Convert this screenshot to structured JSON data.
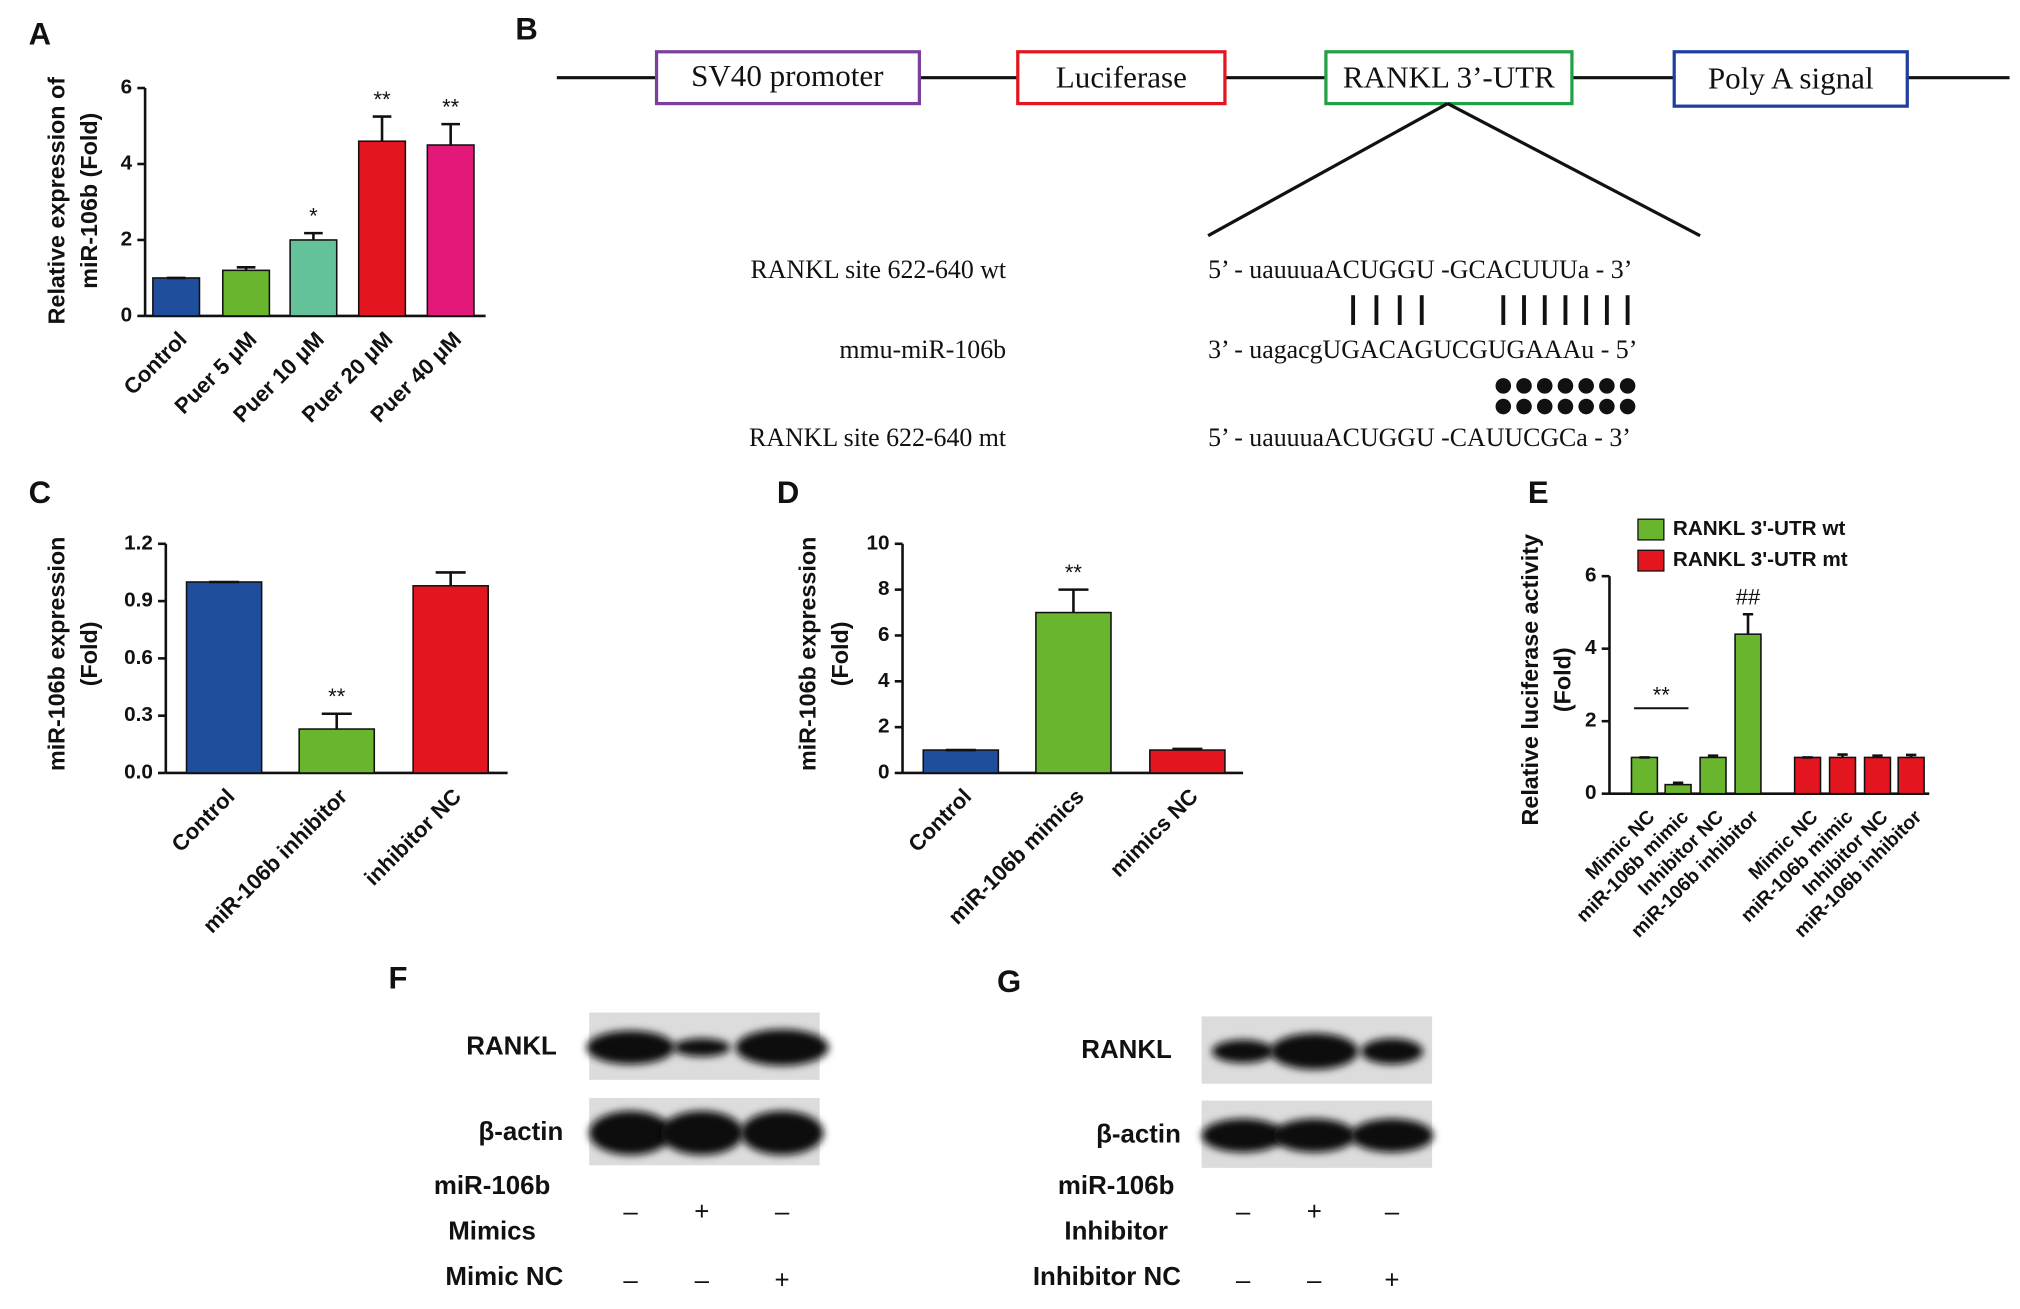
{
  "chart_data": [
    {
      "type": "bar",
      "panel": "A",
      "ylabel": [
        "Relative expression of",
        "miR-106b (Fold)"
      ],
      "categories": [
        "Control",
        "Puer 5 μM",
        "Puer 10 μM",
        "Puer 20 μM",
        "Puer 40 μM"
      ],
      "series": [
        {
          "values": [
            1,
            1.2,
            2,
            4.6,
            4.5
          ],
          "errors": [
            0,
            0.08,
            0.18,
            0.65,
            0.55
          ],
          "colors": [
            "#1f4e9c",
            "#6ab52e",
            "#63c29a",
            "#e3151f",
            "#e3197a"
          ],
          "annotations": [
            null,
            null,
            "*",
            "**",
            "**"
          ]
        }
      ],
      "ylim": [
        0,
        6
      ],
      "yticks": [
        0,
        2,
        4,
        6
      ]
    },
    {
      "type": "bar",
      "panel": "C",
      "ylabel": [
        "miR-106b expression",
        "(Fold)"
      ],
      "categories": [
        "Control",
        "miR-106b inhibitor",
        "inhibitor NC"
      ],
      "series": [
        {
          "values": [
            1,
            0.23,
            0.98
          ],
          "errors": [
            0,
            0.08,
            0.07
          ],
          "colors": [
            "#1f4e9c",
            "#6ab52e",
            "#e3151f"
          ],
          "annotations": [
            null,
            "**",
            null
          ]
        }
      ],
      "ylim": [
        0,
        1.2
      ],
      "yticks": [
        {
          "value": 0,
          "label": "0.0"
        },
        0.3,
        0.6,
        0.9,
        1.2
      ]
    },
    {
      "type": "bar",
      "panel": "D",
      "ylabel": [
        "miR-106b expression",
        "(Fold)"
      ],
      "categories": [
        "Control",
        "miR-106b mimics",
        "mimics NC"
      ],
      "series": [
        {
          "values": [
            1,
            7,
            1
          ],
          "errors": [
            0,
            1,
            0.05
          ],
          "colors": [
            "#1f4e9c",
            "#6ab52e",
            "#e3151f"
          ],
          "annotations": [
            null,
            "**",
            null
          ]
        }
      ],
      "ylim": [
        0,
        10
      ],
      "yticks": [
        0,
        2,
        4,
        6,
        8,
        10
      ]
    },
    {
      "type": "bar",
      "panel": "E",
      "ylabel": [
        "Relative luciferase activity",
        "(Fold)"
      ],
      "categories": [
        "Mimic NC",
        "miR-106b mimic",
        "Inhibitor NC",
        "miR-106b inhibitor"
      ],
      "series": [
        {
          "name": "RANKL 3'-UTR wt",
          "color": "#6ab52e",
          "values": [
            1,
            0.25,
            1,
            4.4
          ],
          "errors": [
            0,
            0.05,
            0.05,
            0.55
          ],
          "annotations": [
            null,
            null,
            null,
            "##"
          ],
          "brackets": [
            {
              "bars": [
                0,
                1
              ],
              "label": "**"
            }
          ]
        },
        {
          "name": "RANKL 3'-UTR mt",
          "color": "#e3151f",
          "values": [
            1,
            1,
            1,
            1
          ],
          "errors": [
            0,
            0.08,
            0.05,
            0.07
          ]
        }
      ],
      "ylim": [
        0,
        6
      ],
      "yticks": [
        0,
        2,
        4,
        6
      ],
      "legend": "top"
    }
  ],
  "diagram": {
    "label": "B",
    "elements": [
      "SV40 promoter",
      "Luciferase",
      "RANKL 3’-UTR",
      "Poly A signal"
    ],
    "rows": [
      {
        "label": "RANKL site 622-640 wt",
        "sequence": "5’ - uauuuaACUGGU -GCACUUUa - 3’"
      },
      {
        "label": "mmu-miR-106b",
        "sequence": "3’ - uagacgUGACAGUCGUGAAAu - 5’"
      },
      {
        "label": "RANKL site 622-640 mt",
        "sequence": "5’ - uauuuaACUGGU -CAUUCGCa - 3’"
      }
    ]
  },
  "blots": [
    {
      "label": "F",
      "proteins": [
        "RANKL",
        "β-actin"
      ],
      "conditions": [
        {
          "name": [
            "miR-106b",
            "Mimics"
          ],
          "signs": [
            "–",
            "+",
            "–"
          ]
        },
        {
          "name": [
            "Mimic NC"
          ],
          "signs": [
            "–",
            "–",
            "+"
          ]
        }
      ]
    },
    {
      "label": "G",
      "proteins": [
        "RANKL",
        "β-actin"
      ],
      "conditions": [
        {
          "name": [
            "miR-106b",
            "Inhibitor"
          ],
          "signs": [
            "–",
            "+",
            "–"
          ]
        },
        {
          "name": [
            "Inhibitor NC"
          ],
          "signs": [
            "–",
            "–",
            "+"
          ]
        }
      ]
    }
  ]
}
